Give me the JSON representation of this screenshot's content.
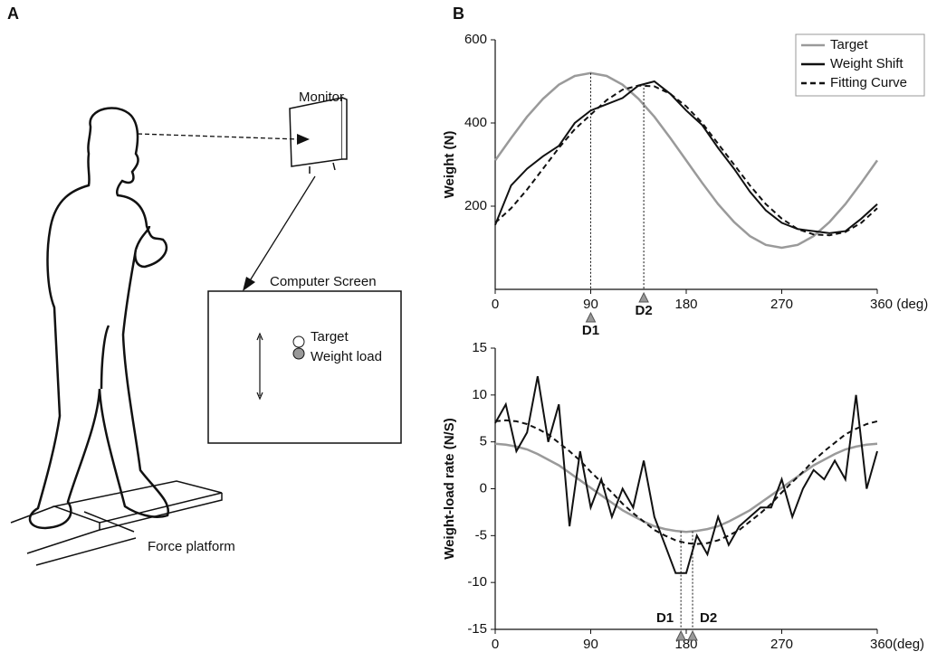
{
  "panel_labels": [
    "A",
    "B"
  ],
  "panel_a": {
    "monitor": "Monitor",
    "screen_title": "Computer Screen",
    "target": "Target",
    "weight_load": "Weight load",
    "platform": "Force platform"
  },
  "chart_data": [
    {
      "type": "line",
      "ylabel": "Weight (N)",
      "x": [
        0,
        15,
        30,
        45,
        60,
        75,
        90,
        105,
        120,
        135,
        150,
        165,
        180,
        195,
        210,
        225,
        240,
        255,
        270,
        285,
        300,
        315,
        330,
        345,
        360
      ],
      "series": [
        {
          "name": "Target",
          "color": "#9a9a9a",
          "style": "solid",
          "values": [
            310,
            364,
            415,
            458,
            492,
            513,
            520,
            513,
            492,
            458,
            415,
            364,
            310,
            256,
            205,
            162,
            128,
            107,
            100,
            107,
            128,
            162,
            205,
            256,
            310
          ]
        },
        {
          "name": "Weight Shift",
          "color": "#111111",
          "style": "solid",
          "values": [
            155,
            250,
            290,
            320,
            345,
            400,
            430,
            445,
            460,
            490,
            500,
            470,
            430,
            395,
            340,
            290,
            235,
            190,
            160,
            145,
            140,
            135,
            140,
            170,
            205
          ]
        },
        {
          "name": "Fitting Curve",
          "color": "#111111",
          "style": "dashed",
          "values": [
            160,
            195,
            240,
            290,
            340,
            385,
            420,
            455,
            480,
            490,
            488,
            470,
            440,
            400,
            350,
            300,
            250,
            205,
            170,
            145,
            132,
            130,
            138,
            160,
            195
          ]
        }
      ],
      "xlim": [
        0,
        360
      ],
      "xticks": [
        0,
        90,
        180,
        270,
        {
          "value": 360,
          "label": "360 (deg)"
        }
      ],
      "ylim": [
        0,
        600
      ],
      "yticks": [
        200,
        400,
        600
      ],
      "legend": "upper right",
      "annotations": [
        {
          "label": "D1",
          "x": 90
        },
        {
          "label": "D2",
          "x": 140
        }
      ]
    },
    {
      "type": "line",
      "ylabel": "Weight-load rate (N/S)",
      "x": [
        0,
        10,
        20,
        30,
        40,
        50,
        60,
        70,
        80,
        90,
        100,
        110,
        120,
        130,
        140,
        150,
        160,
        170,
        180,
        190,
        200,
        210,
        220,
        230,
        240,
        250,
        260,
        270,
        280,
        290,
        300,
        310,
        320,
        330,
        340,
        350,
        360
      ],
      "series": [
        {
          "color": "#9a9a9a",
          "style": "solid",
          "values": [
            4.8,
            4.7,
            4.5,
            4.2,
            3.7,
            3.1,
            2.5,
            1.7,
            0.9,
            0.1,
            -0.7,
            -1.5,
            -2.3,
            -2.9,
            -3.5,
            -4.0,
            -4.3,
            -4.5,
            -4.6,
            -4.5,
            -4.3,
            -4.0,
            -3.5,
            -2.9,
            -2.3,
            -1.5,
            -0.7,
            0.1,
            0.9,
            1.7,
            2.5,
            3.1,
            3.7,
            4.2,
            4.5,
            4.7,
            4.8
          ]
        },
        {
          "color": "#111111",
          "style": "solid",
          "values": [
            7,
            9,
            4,
            6,
            12,
            5,
            9,
            -4,
            4,
            -2,
            1,
            -3,
            0,
            -2,
            3,
            -3,
            -6,
            -9,
            -9,
            -5,
            -7,
            -3,
            -6,
            -4,
            -3,
            -2,
            -2,
            1,
            -3,
            0,
            2,
            1,
            3,
            1,
            10,
            0,
            4
          ]
        },
        {
          "color": "#111111",
          "style": "dashed",
          "values": [
            7.2,
            7.3,
            7.2,
            6.9,
            6.4,
            5.8,
            4.9,
            4.0,
            3.0,
            1.8,
            0.7,
            -0.4,
            -1.6,
            -2.6,
            -3.5,
            -4.4,
            -5.0,
            -5.5,
            -5.8,
            -5.9,
            -5.8,
            -5.5,
            -5.0,
            -4.4,
            -3.5,
            -2.6,
            -1.6,
            -0.4,
            0.7,
            1.8,
            3.0,
            4.0,
            4.9,
            5.8,
            6.4,
            6.9,
            7.2
          ]
        }
      ],
      "xlim": [
        0,
        360
      ],
      "xticks": [
        0,
        90,
        180,
        270,
        {
          "value": 360,
          "label": "360(deg)"
        }
      ],
      "ylim": [
        -15,
        15
      ],
      "yticks": [
        -15,
        -10,
        -5,
        0,
        5,
        10,
        15
      ],
      "annotations": [
        {
          "label": "D1",
          "x": 175
        },
        {
          "label": "D2",
          "x": 186
        }
      ]
    }
  ]
}
